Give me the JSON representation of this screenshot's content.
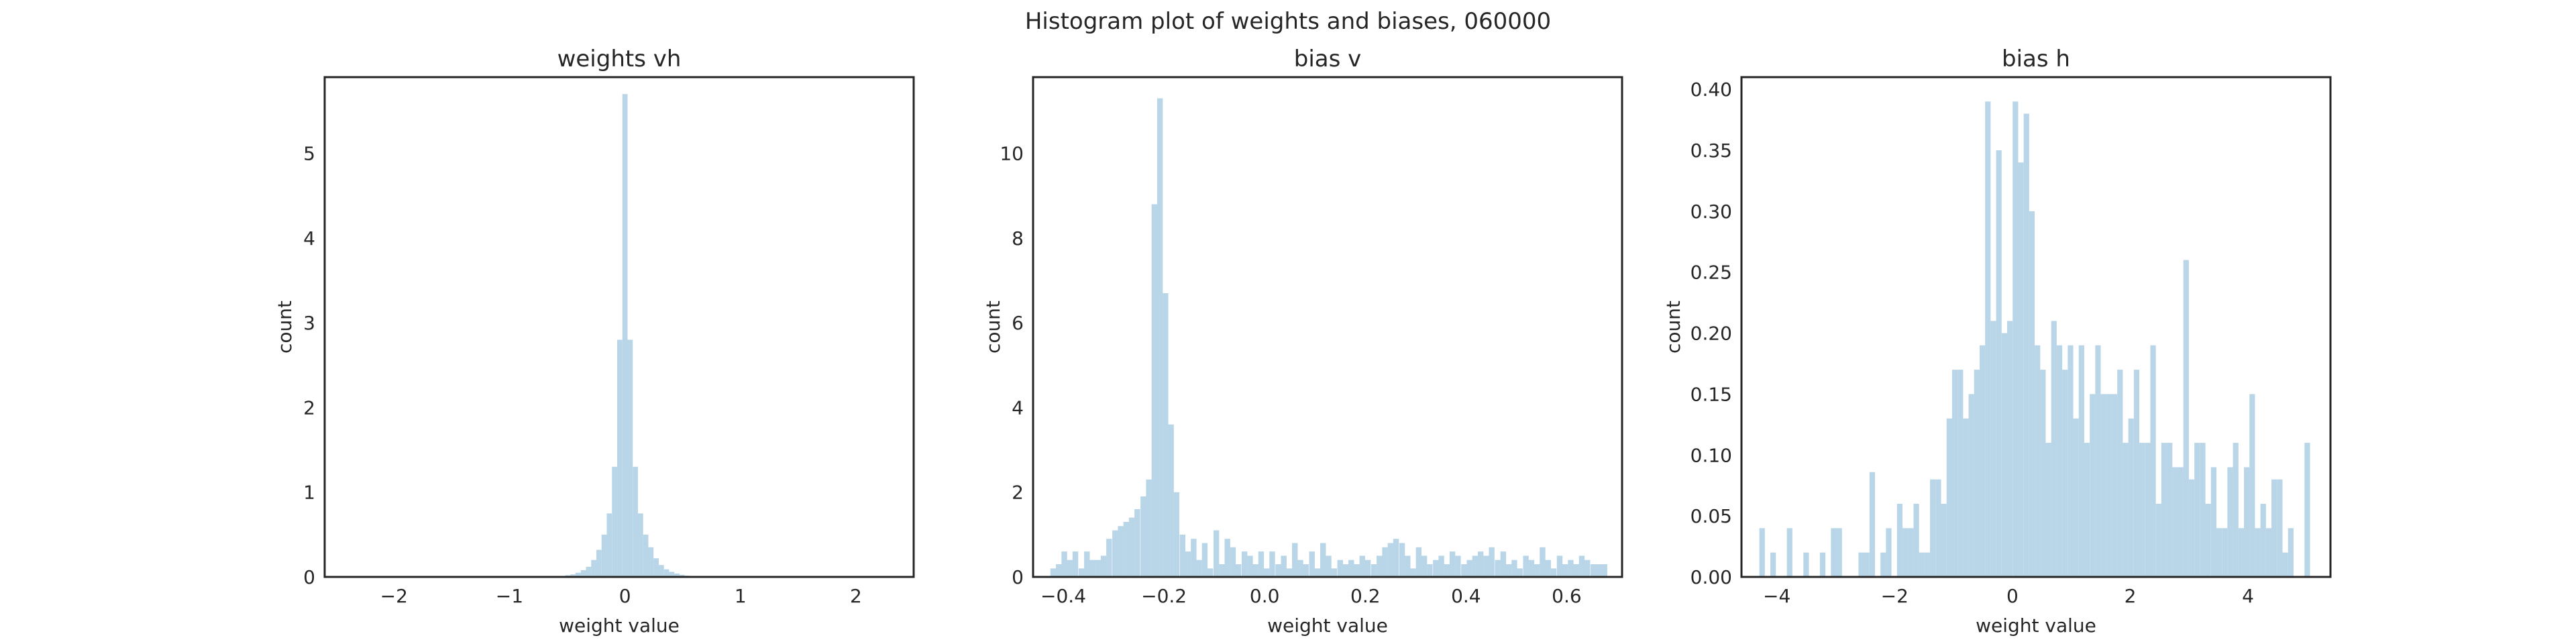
{
  "figure": {
    "suptitle": "Histogram plot of weights and biases, 060000",
    "bar_color": "#b9d5e8",
    "axis_color": "#262626"
  },
  "chart_data": [
    {
      "type": "bar",
      "title": "weights vh",
      "xlabel": "weight value",
      "ylabel": "count",
      "xlim": [
        -2.6,
        2.5
      ],
      "ylim": [
        0,
        5.9
      ],
      "xticks": [
        -2,
        -1,
        0,
        1,
        2
      ],
      "xtick_labels": [
        "−2",
        "−1",
        "0",
        "1",
        "2"
      ],
      "yticks": [
        0,
        1,
        2,
        3,
        4,
        5
      ],
      "ytick_labels": [
        "0",
        "1",
        "2",
        "3",
        "4",
        "5"
      ],
      "bin_width": 0.045,
      "bins": [
        [
          -0.585,
          0.01
        ],
        [
          -0.54,
          0.01
        ],
        [
          -0.495,
          0.02
        ],
        [
          -0.45,
          0.03
        ],
        [
          -0.405,
          0.05
        ],
        [
          -0.36,
          0.08
        ],
        [
          -0.315,
          0.12
        ],
        [
          -0.27,
          0.2
        ],
        [
          -0.225,
          0.32
        ],
        [
          -0.18,
          0.5
        ],
        [
          -0.135,
          0.75
        ],
        [
          -0.09,
          1.3
        ],
        [
          -0.045,
          2.8
        ],
        [
          0.0,
          5.7
        ],
        [
          0.045,
          2.8
        ],
        [
          0.09,
          1.3
        ],
        [
          0.135,
          0.75
        ],
        [
          0.18,
          0.5
        ],
        [
          0.225,
          0.35
        ],
        [
          0.27,
          0.22
        ],
        [
          0.315,
          0.14
        ],
        [
          0.36,
          0.09
        ],
        [
          0.405,
          0.06
        ],
        [
          0.45,
          0.04
        ],
        [
          0.495,
          0.025
        ],
        [
          0.54,
          0.015
        ],
        [
          0.585,
          0.01
        ],
        [
          0.63,
          0.01
        ]
      ]
    },
    {
      "type": "bar",
      "title": "bias v",
      "xlabel": "weight value",
      "ylabel": "count",
      "xlim": [
        -0.46,
        0.71
      ],
      "ylim": [
        0,
        11.8
      ],
      "xticks": [
        -0.4,
        -0.2,
        0.0,
        0.2,
        0.4,
        0.6
      ],
      "xtick_labels": [
        "−0.4",
        "−0.2",
        "0.0",
        "0.2",
        "0.4",
        "0.6"
      ],
      "yticks": [
        0,
        2,
        4,
        6,
        8,
        10
      ],
      "ytick_labels": [
        "0",
        "2",
        "4",
        "6",
        "8",
        "10"
      ],
      "bin_width": 0.0112,
      "bins": [
        [
          -0.42,
          0.2
        ],
        [
          -0.409,
          0.3
        ],
        [
          -0.398,
          0.6
        ],
        [
          -0.387,
          0.4
        ],
        [
          -0.376,
          0.6
        ],
        [
          -0.364,
          0.2
        ],
        [
          -0.353,
          0.6
        ],
        [
          -0.342,
          0.4
        ],
        [
          -0.331,
          0.4
        ],
        [
          -0.32,
          0.5
        ],
        [
          -0.309,
          0.9
        ],
        [
          -0.297,
          1.1
        ],
        [
          -0.286,
          1.2
        ],
        [
          -0.275,
          1.3
        ],
        [
          -0.264,
          1.4
        ],
        [
          -0.253,
          1.6
        ],
        [
          -0.241,
          1.9
        ],
        [
          -0.23,
          2.3
        ],
        [
          -0.219,
          8.8
        ],
        [
          -0.208,
          11.3
        ],
        [
          -0.197,
          6.7
        ],
        [
          -0.186,
          3.6
        ],
        [
          -0.175,
          2.0
        ],
        [
          -0.163,
          1.0
        ],
        [
          -0.152,
          0.6
        ],
        [
          -0.141,
          0.9
        ],
        [
          -0.13,
          0.4
        ],
        [
          -0.119,
          0.8
        ],
        [
          -0.108,
          0.2
        ],
        [
          -0.096,
          1.1
        ],
        [
          -0.085,
          0.3
        ],
        [
          -0.074,
          0.9
        ],
        [
          -0.063,
          0.7
        ],
        [
          -0.052,
          0.3
        ],
        [
          -0.04,
          0.6
        ],
        [
          -0.029,
          0.5
        ],
        [
          -0.018,
          0.3
        ],
        [
          -0.007,
          0.6
        ],
        [
          0.004,
          0.2
        ],
        [
          0.015,
          0.6
        ],
        [
          0.027,
          0.3
        ],
        [
          0.038,
          0.5
        ],
        [
          0.049,
          0.2
        ],
        [
          0.06,
          0.8
        ],
        [
          0.071,
          0.4
        ],
        [
          0.082,
          0.3
        ],
        [
          0.094,
          0.6
        ],
        [
          0.105,
          0.2
        ],
        [
          0.116,
          0.8
        ],
        [
          0.127,
          0.5
        ],
        [
          0.138,
          0.2
        ],
        [
          0.15,
          0.4
        ],
        [
          0.161,
          0.3
        ],
        [
          0.172,
          0.4
        ],
        [
          0.183,
          0.3
        ],
        [
          0.194,
          0.5
        ],
        [
          0.205,
          0.4
        ],
        [
          0.217,
          0.3
        ],
        [
          0.228,
          0.5
        ],
        [
          0.239,
          0.7
        ],
        [
          0.25,
          0.8
        ],
        [
          0.261,
          0.9
        ],
        [
          0.273,
          0.8
        ],
        [
          0.284,
          0.5
        ],
        [
          0.295,
          0.2
        ],
        [
          0.306,
          0.7
        ],
        [
          0.317,
          0.5
        ],
        [
          0.328,
          0.3
        ],
        [
          0.34,
          0.4
        ],
        [
          0.351,
          0.5
        ],
        [
          0.362,
          0.3
        ],
        [
          0.373,
          0.6
        ],
        [
          0.384,
          0.5
        ],
        [
          0.396,
          0.3
        ],
        [
          0.407,
          0.4
        ],
        [
          0.418,
          0.5
        ],
        [
          0.429,
          0.6
        ],
        [
          0.44,
          0.5
        ],
        [
          0.451,
          0.7
        ],
        [
          0.463,
          0.4
        ],
        [
          0.474,
          0.6
        ],
        [
          0.485,
          0.3
        ],
        [
          0.496,
          0.4
        ],
        [
          0.507,
          0.2
        ],
        [
          0.519,
          0.5
        ],
        [
          0.53,
          0.4
        ],
        [
          0.541,
          0.3
        ],
        [
          0.552,
          0.7
        ],
        [
          0.563,
          0.4
        ],
        [
          0.574,
          0.2
        ],
        [
          0.586,
          0.5
        ],
        [
          0.597,
          0.3
        ],
        [
          0.608,
          0.4
        ],
        [
          0.619,
          0.3
        ],
        [
          0.63,
          0.5
        ],
        [
          0.641,
          0.4
        ],
        [
          0.653,
          0.3
        ],
        [
          0.664,
          0.3
        ],
        [
          0.675,
          0.3
        ]
      ]
    },
    {
      "type": "bar",
      "title": "bias h",
      "xlabel": "weight value",
      "ylabel": "count",
      "xlim": [
        -4.6,
        5.4
      ],
      "ylim": [
        0,
        0.41
      ],
      "xticks": [
        -4,
        -2,
        0,
        2,
        4
      ],
      "xtick_labels": [
        "−4",
        "−2",
        "0",
        "2",
        "4"
      ],
      "yticks": [
        0.0,
        0.05,
        0.1,
        0.15,
        0.2,
        0.25,
        0.3,
        0.35,
        0.4
      ],
      "ytick_labels": [
        "0.00",
        "0.05",
        "0.10",
        "0.15",
        "0.20",
        "0.25",
        "0.30",
        "0.35",
        "0.40"
      ],
      "bin_width": 0.0935,
      "bins": [
        [
          -4.25,
          0.04
        ],
        [
          -4.157,
          0.0
        ],
        [
          -4.063,
          0.02
        ],
        [
          -3.97,
          0.0
        ],
        [
          -3.876,
          0.0
        ],
        [
          -3.783,
          0.04
        ],
        [
          -3.689,
          0.0
        ],
        [
          -3.596,
          0.0
        ],
        [
          -3.502,
          0.02
        ],
        [
          -3.409,
          0.0
        ],
        [
          -3.315,
          0.0
        ],
        [
          -3.222,
          0.02
        ],
        [
          -3.128,
          0.0
        ],
        [
          -3.035,
          0.04
        ],
        [
          -2.941,
          0.04
        ],
        [
          -2.848,
          0.0
        ],
        [
          -2.754,
          0.0
        ],
        [
          -2.661,
          0.0
        ],
        [
          -2.567,
          0.02
        ],
        [
          -2.474,
          0.02
        ],
        [
          -2.38,
          0.086
        ],
        [
          -2.287,
          0.0
        ],
        [
          -2.193,
          0.02
        ],
        [
          -2.1,
          0.04
        ],
        [
          -2.006,
          0.0
        ],
        [
          -1.913,
          0.06
        ],
        [
          -1.819,
          0.04
        ],
        [
          -1.726,
          0.04
        ],
        [
          -1.632,
          0.06
        ],
        [
          -1.539,
          0.02
        ],
        [
          -1.445,
          0.02
        ],
        [
          -1.352,
          0.08
        ],
        [
          -1.258,
          0.08
        ],
        [
          -1.165,
          0.06
        ],
        [
          -1.071,
          0.13
        ],
        [
          -0.978,
          0.17
        ],
        [
          -0.884,
          0.17
        ],
        [
          -0.791,
          0.13
        ],
        [
          -0.697,
          0.15
        ],
        [
          -0.604,
          0.17
        ],
        [
          -0.51,
          0.19
        ],
        [
          -0.417,
          0.39
        ],
        [
          -0.323,
          0.21
        ],
        [
          -0.23,
          0.35
        ],
        [
          -0.136,
          0.2
        ],
        [
          -0.043,
          0.21
        ],
        [
          0.051,
          0.39
        ],
        [
          0.144,
          0.34
        ],
        [
          0.238,
          0.38
        ],
        [
          0.331,
          0.3
        ],
        [
          0.425,
          0.19
        ],
        [
          0.518,
          0.17
        ],
        [
          0.612,
          0.11
        ],
        [
          0.705,
          0.21
        ],
        [
          0.799,
          0.19
        ],
        [
          0.892,
          0.17
        ],
        [
          0.986,
          0.19
        ],
        [
          1.079,
          0.13
        ],
        [
          1.173,
          0.19
        ],
        [
          1.266,
          0.11
        ],
        [
          1.36,
          0.15
        ],
        [
          1.453,
          0.19
        ],
        [
          1.547,
          0.15
        ],
        [
          1.64,
          0.15
        ],
        [
          1.734,
          0.15
        ],
        [
          1.827,
          0.17
        ],
        [
          1.921,
          0.11
        ],
        [
          2.014,
          0.13
        ],
        [
          2.108,
          0.17
        ],
        [
          2.201,
          0.11
        ],
        [
          2.295,
          0.11
        ],
        [
          2.388,
          0.19
        ],
        [
          2.482,
          0.06
        ],
        [
          2.575,
          0.11
        ],
        [
          2.669,
          0.11
        ],
        [
          2.762,
          0.09
        ],
        [
          2.856,
          0.09
        ],
        [
          2.949,
          0.26
        ],
        [
          3.043,
          0.08
        ],
        [
          3.136,
          0.11
        ],
        [
          3.23,
          0.11
        ],
        [
          3.323,
          0.06
        ],
        [
          3.417,
          0.09
        ],
        [
          3.51,
          0.04
        ],
        [
          3.604,
          0.04
        ],
        [
          3.697,
          0.09
        ],
        [
          3.791,
          0.11
        ],
        [
          3.884,
          0.04
        ],
        [
          3.978,
          0.09
        ],
        [
          4.071,
          0.15
        ],
        [
          4.165,
          0.04
        ],
        [
          4.258,
          0.06
        ],
        [
          4.352,
          0.04
        ],
        [
          4.445,
          0.08
        ],
        [
          4.539,
          0.08
        ],
        [
          4.632,
          0.02
        ],
        [
          4.726,
          0.04
        ],
        [
          4.819,
          0.0
        ],
        [
          4.913,
          0.0
        ],
        [
          5.006,
          0.11
        ]
      ]
    }
  ]
}
